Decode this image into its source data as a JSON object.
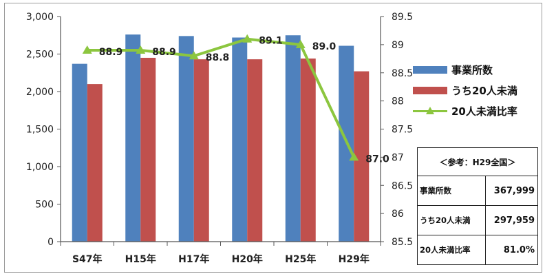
{
  "chart_data": {
    "type": "bar",
    "categories": [
      "S47年",
      "H15年",
      "H17年",
      "H20年",
      "H25年",
      "H29年"
    ],
    "series": [
      {
        "name": "事業所数",
        "type": "bar",
        "axis": "left",
        "color": "#4f81bd",
        "values": [
          2370,
          2760,
          2740,
          2720,
          2750,
          2610
        ]
      },
      {
        "name": "うち20人未満",
        "type": "bar",
        "axis": "left",
        "color": "#c0504d",
        "values": [
          2100,
          2450,
          2430,
          2430,
          2440,
          2270
        ]
      },
      {
        "name": "20人未満比率",
        "type": "line",
        "axis": "right",
        "color": "#8cc63f",
        "values": [
          88.9,
          88.9,
          88.8,
          89.1,
          89.0,
          87.0
        ],
        "labels": [
          "88.9",
          "88.9",
          "88.8",
          "89.1",
          "89.0",
          "87.0"
        ]
      }
    ],
    "left_axis": {
      "ylim": [
        0,
        3000
      ],
      "ticks": [
        "0",
        "500",
        "1,000",
        "1,500",
        "2,000",
        "2,500",
        "3,000"
      ],
      "tick_values": [
        0,
        500,
        1000,
        1500,
        2000,
        2500,
        3000
      ]
    },
    "right_axis": {
      "ylim": [
        85.5,
        89.5
      ],
      "ticks": [
        "85.5",
        "86",
        "86.5",
        "87",
        "87.5",
        "88",
        "88.5",
        "89",
        "89.5"
      ],
      "tick_values": [
        85.5,
        86,
        86.5,
        87,
        87.5,
        88,
        88.5,
        89,
        89.5
      ]
    },
    "grid": false,
    "legend": "right"
  },
  "reference_table": {
    "title": "＜参考：H29全国＞",
    "rows": [
      {
        "label": "事業所数",
        "value": "367,999"
      },
      {
        "label": "うち20人未満",
        "value": "297,959"
      },
      {
        "label": "20人未満比率",
        "value": "81.0%"
      }
    ]
  }
}
